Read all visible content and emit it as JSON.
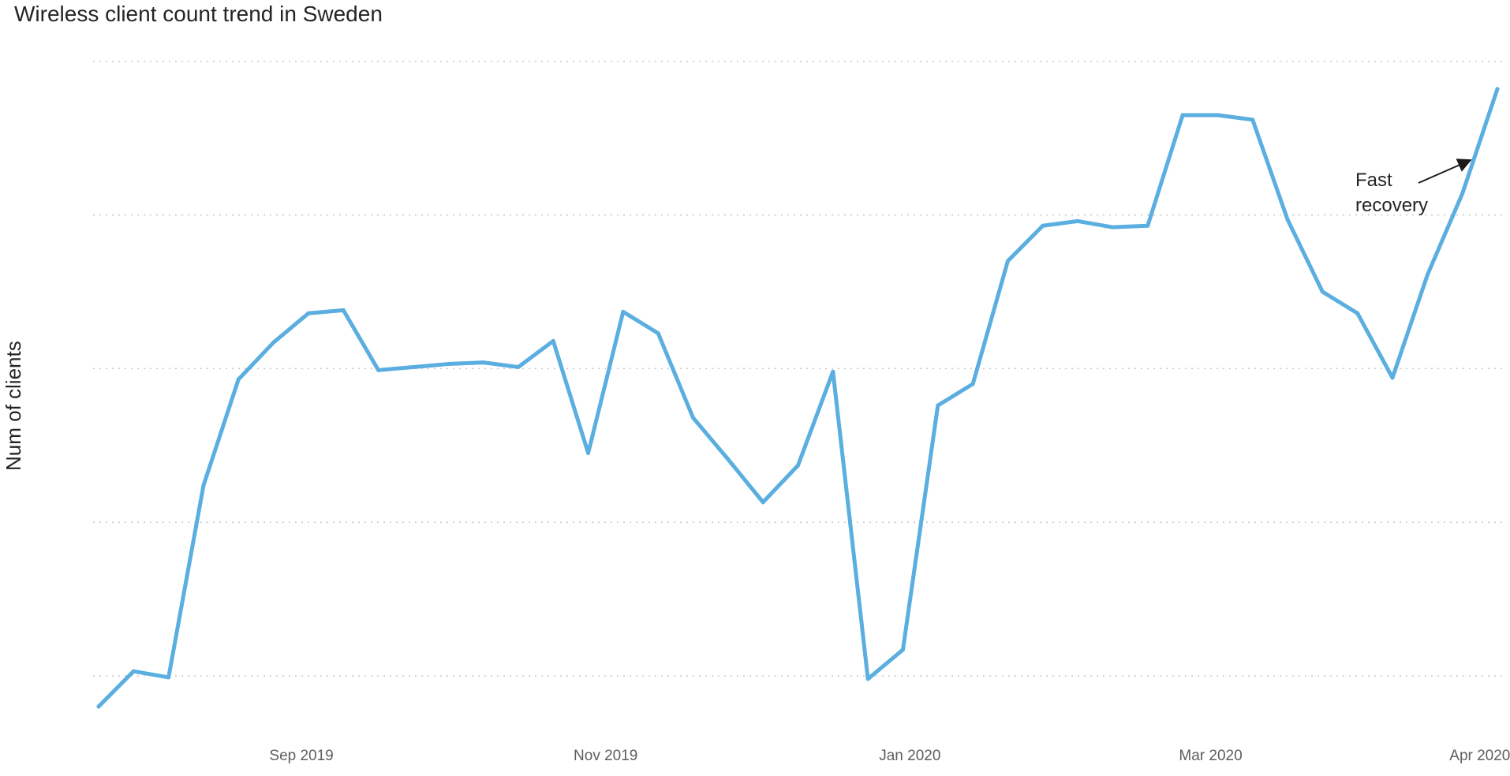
{
  "chart_data": {
    "type": "line",
    "title": "Wireless client count trend in Sweden",
    "xlabel": "",
    "ylabel": "Num of clients",
    "x_tick_labels": [
      "Sep 2019",
      "Nov 2019",
      "Jan 2020",
      "Mar 2020",
      "Apr 2020"
    ],
    "x_tick_week_index": [
      5.8,
      14.5,
      23.2,
      31.8,
      39.5
    ],
    "y_tick_labels_shown": false,
    "ylim": [
      0,
      4.2
    ],
    "grid": true,
    "legend": "none",
    "color": "#5aaee0",
    "series": [
      {
        "name": "",
        "values": [
          -0.2,
          0.03,
          -0.01,
          1.24,
          1.93,
          2.17,
          2.36,
          2.38,
          1.99,
          2.01,
          2.03,
          2.04,
          2.01,
          2.18,
          1.45,
          2.37,
          2.23,
          1.68,
          1.41,
          1.13,
          1.37,
          1.98,
          -0.02,
          0.17,
          1.76,
          1.9,
          2.7,
          2.93,
          2.96,
          2.92,
          2.93,
          3.65,
          3.65,
          3.62,
          2.97,
          2.5,
          2.36,
          1.94,
          2.61,
          3.14,
          3.82
        ]
      }
    ],
    "annotations": [
      {
        "lines": [
          "Fast",
          "recovery"
        ],
        "points_to_index": 39
      }
    ]
  }
}
